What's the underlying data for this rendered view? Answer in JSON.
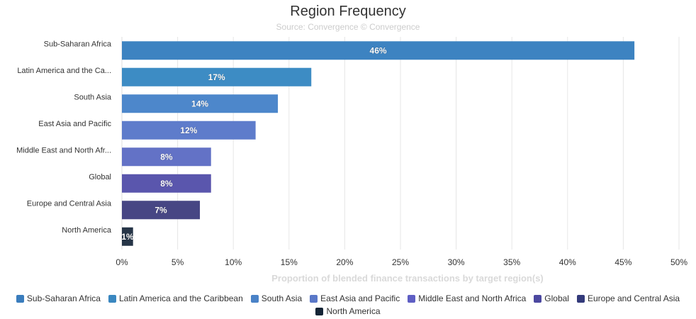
{
  "chart_data": {
    "type": "bar",
    "orientation": "horizontal",
    "title": "Region Frequency",
    "subtitle": "Source: Convergence © Convergence",
    "xlabel": "Proportion of blended finance transactions by target region(s)",
    "ylabel": "",
    "xlim": [
      0,
      50
    ],
    "x_tick_labels": [
      "0%",
      "5%",
      "10%",
      "15%",
      "20%",
      "25%",
      "30%",
      "35%",
      "40%",
      "45%",
      "50%"
    ],
    "categories": [
      "Sub-Saharan Africa",
      "Latin America and the Ca...",
      "South Asia",
      "East Asia and Pacific",
      "Middle East and North Afr...",
      "Global",
      "Europe and Central Asia",
      "North America"
    ],
    "values": [
      46,
      17,
      14,
      12,
      8,
      8,
      7,
      1
    ],
    "data_labels": [
      "46%",
      "17%",
      "14%",
      "12%",
      "8%",
      "8%",
      "7%",
      "1%"
    ],
    "bar_colors": [
      "#3d83c1",
      "#3d8cc4",
      "#4d87cb",
      "#5e7ccb",
      "#6372c6",
      "#5a56ad",
      "#474684",
      "#263547"
    ],
    "grid": true,
    "legend_position": "bottom",
    "legend": [
      {
        "label": "Sub-Saharan Africa",
        "color": "#3a7dbd"
      },
      {
        "label": "Latin America and the Caribbean",
        "color": "#3a87c0"
      },
      {
        "label": "South Asia",
        "color": "#4a82c7"
      },
      {
        "label": "East Asia and Pacific",
        "color": "#5a78c8"
      },
      {
        "label": "Middle East and North Africa",
        "color": "#5f5fc4"
      },
      {
        "label": "Global",
        "color": "#4c48a0"
      },
      {
        "label": "Europe and Central Asia",
        "color": "#333a7a"
      },
      {
        "label": "North America",
        "color": "#152536"
      }
    ]
  }
}
